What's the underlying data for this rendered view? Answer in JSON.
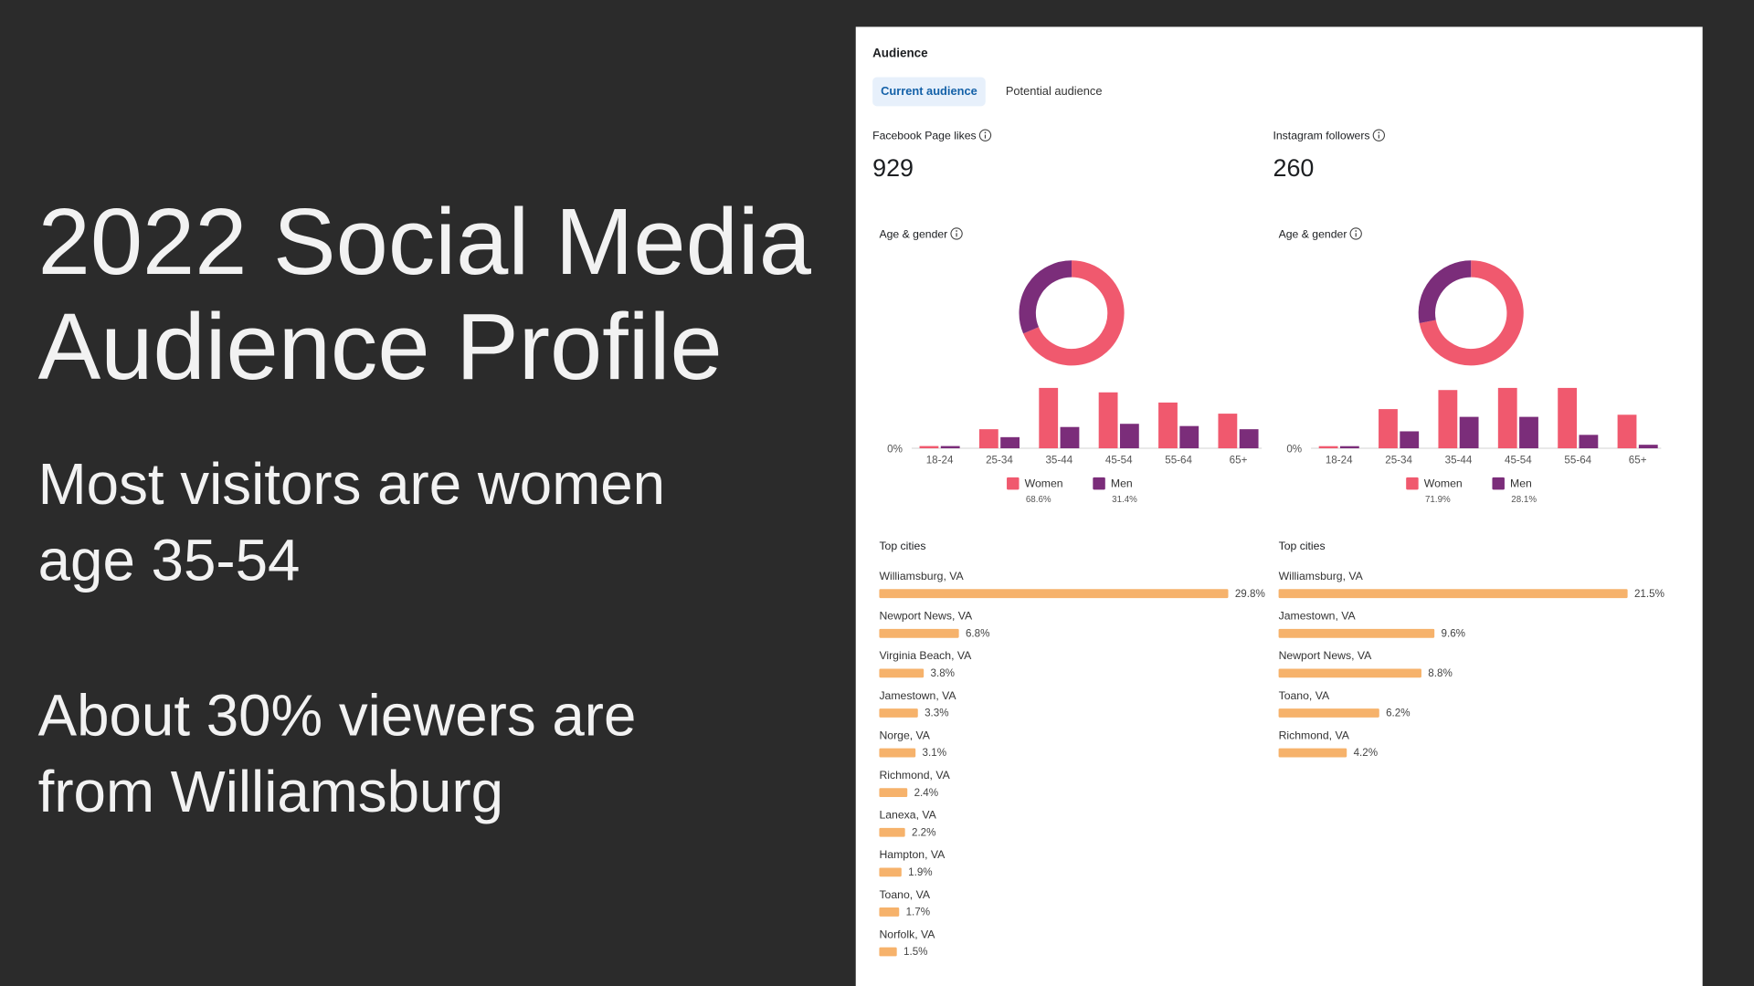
{
  "slide": {
    "title": "2022 Social Media Audience Profile",
    "points": [
      "Most visitors are women age 35-54",
      "About 30% viewers are from Williamsburg"
    ]
  },
  "panel": {
    "heading": "Audience",
    "tabs": [
      "Current audience",
      "Potential audience"
    ],
    "columns": [
      {
        "metric_label": "Facebook Page likes",
        "metric_value": 929,
        "age_gender": {
          "type": "bar",
          "title": "Age & gender",
          "categories": [
            "18-24",
            "25-34",
            "35-44",
            "45-54",
            "55-64",
            "65+"
          ],
          "yticks": [
            {
              "value": 0,
              "label": "0%"
            }
          ],
          "series": [
            {
              "name": "Women",
              "color": "#f0596e",
              "values": [
                0.7,
                6.0,
                19.0,
                17.6,
                14.4,
                10.9
              ],
              "share": 68.6,
              "share_label": "68.6%"
            },
            {
              "name": "Men",
              "color": "#7b2d7a",
              "values": [
                0.7,
                3.5,
                6.7,
                7.7,
                7.0,
                6.0
              ],
              "share": 31.4,
              "share_label": "31.4%"
            }
          ]
        },
        "top_cities": {
          "title": "Top cities",
          "color": "#f6b26b",
          "items": [
            {
              "name": "Williamsburg, VA",
              "value": 29.8,
              "label": "29.8%"
            },
            {
              "name": "Newport News, VA",
              "value": 6.8,
              "label": "6.8%"
            },
            {
              "name": "Virginia Beach, VA",
              "value": 3.8,
              "label": "3.8%"
            },
            {
              "name": "Jamestown, VA",
              "value": 3.3,
              "label": "3.3%"
            },
            {
              "name": "Norge, VA",
              "value": 3.1,
              "label": "3.1%"
            },
            {
              "name": "Richmond, VA",
              "value": 2.4,
              "label": "2.4%"
            },
            {
              "name": "Lanexa, VA",
              "value": 2.2,
              "label": "2.2%"
            },
            {
              "name": "Hampton, VA",
              "value": 1.9,
              "label": "1.9%"
            },
            {
              "name": "Toano, VA",
              "value": 1.7,
              "label": "1.7%"
            },
            {
              "name": "Norfolk, VA",
              "value": 1.5,
              "label": "1.5%"
            }
          ]
        }
      },
      {
        "metric_label": "Instagram followers",
        "metric_value": 260,
        "age_gender": {
          "type": "bar",
          "title": "Age & gender",
          "categories": [
            "18-24",
            "25-34",
            "35-44",
            "45-54",
            "55-64",
            "65+"
          ],
          "yticks": [
            {
              "value": 0,
              "label": "0%"
            }
          ],
          "series": [
            {
              "name": "Women",
              "color": "#f0596e",
              "values": [
                0.6,
                11.1,
                16.5,
                17.1,
                17.1,
                9.5
              ],
              "share": 71.9,
              "share_label": "71.9%"
            },
            {
              "name": "Men",
              "color": "#7b2d7a",
              "values": [
                0.6,
                4.8,
                8.9,
                8.9,
                3.8,
                1.0
              ],
              "share": 28.1,
              "share_label": "28.1%"
            }
          ]
        },
        "top_cities": {
          "title": "Top cities",
          "color": "#f6b26b",
          "items": [
            {
              "name": "Williamsburg, VA",
              "value": 21.5,
              "label": "21.5%"
            },
            {
              "name": "Jamestown, VA",
              "value": 9.6,
              "label": "9.6%"
            },
            {
              "name": "Newport News, VA",
              "value": 8.8,
              "label": "8.8%"
            },
            {
              "name": "Toano, VA",
              "value": 6.2,
              "label": "6.2%"
            },
            {
              "name": "Richmond, VA",
              "value": 4.2,
              "label": "4.2%"
            }
          ]
        }
      }
    ]
  }
}
